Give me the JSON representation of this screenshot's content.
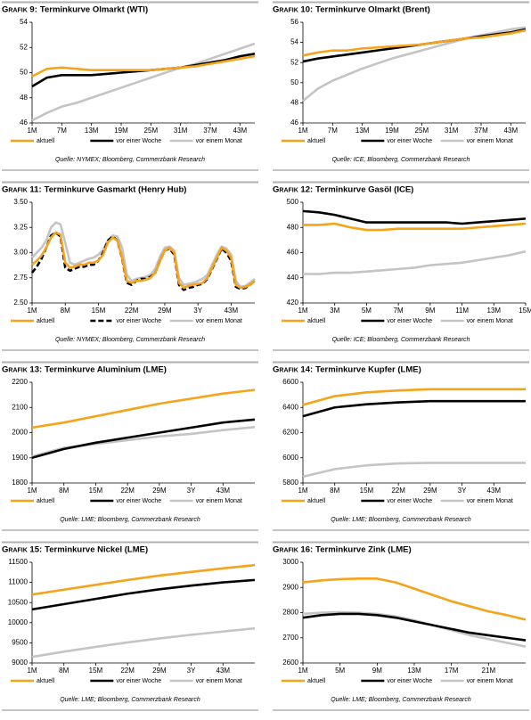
{
  "chart_data": [
    {
      "type": "line",
      "label": "Grafik 9:",
      "title": "Terminkurve Olmarkt (WTI)",
      "source": "Quelle: NYMEX; Bloomberg, Commerzbank Research",
      "categories": [
        "1M",
        null,
        "7M",
        null,
        "13M",
        null,
        "19M",
        null,
        "25M",
        null,
        "31M",
        null,
        "37M",
        null,
        "43M",
        null
      ],
      "ylim": [
        46,
        54
      ],
      "yticks": [
        46,
        48,
        50,
        52,
        54
      ],
      "series": [
        {
          "name": "aktuell",
          "color": "#f5a31a",
          "values": [
            49.7,
            50.3,
            50.4,
            50.3,
            50.2,
            50.2,
            50.2,
            50.2,
            50.2,
            50.3,
            50.4,
            50.5,
            50.7,
            50.9,
            51.1,
            51.3
          ]
        },
        {
          "name": "vor einer Woche",
          "color": "#000000",
          "values": [
            48.9,
            49.6,
            49.8,
            49.8,
            49.8,
            49.9,
            50.0,
            50.1,
            50.2,
            50.3,
            50.4,
            50.6,
            50.8,
            51.0,
            51.3,
            51.5
          ]
        },
        {
          "name": "vor einem Monat",
          "color": "#c4c4c4",
          "values": [
            46.2,
            46.8,
            47.3,
            47.6,
            48.0,
            48.4,
            48.8,
            49.2,
            49.6,
            50.0,
            50.4,
            50.7,
            51.1,
            51.5,
            51.9,
            52.3
          ]
        }
      ]
    },
    {
      "type": "line",
      "label": "Grafik 10:",
      "title": "Terminkurve Olmarkt (Brent)",
      "source": "Quelle: ICE, Bloomberg, Commerzbank Research",
      "categories": [
        "1M",
        null,
        "7M",
        null,
        "13M",
        null,
        "19M",
        null,
        "25M",
        null,
        "31M",
        null,
        "37M",
        null,
        "43M",
        null
      ],
      "ylim": [
        46,
        56
      ],
      "yticks": [
        46,
        48,
        50,
        52,
        54,
        56
      ],
      "series": [
        {
          "name": "aktuell",
          "color": "#f5a31a",
          "values": [
            52.7,
            53.0,
            53.2,
            53.2,
            53.4,
            53.5,
            53.6,
            53.7,
            53.8,
            54.0,
            54.2,
            54.4,
            54.5,
            54.7,
            54.9,
            55.2
          ]
        },
        {
          "name": "vor einer Woche",
          "color": "#000000",
          "values": [
            52.1,
            52.4,
            52.6,
            52.8,
            53.0,
            53.2,
            53.4,
            53.6,
            53.8,
            54.0,
            54.2,
            54.4,
            54.6,
            54.8,
            55.0,
            55.3
          ]
        },
        {
          "name": "vor einem Monat",
          "color": "#c4c4c4",
          "values": [
            48.2,
            49.4,
            50.2,
            50.8,
            51.4,
            51.9,
            52.4,
            52.8,
            53.2,
            53.6,
            54.0,
            54.4,
            54.7,
            55.0,
            55.3,
            55.5
          ]
        }
      ]
    },
    {
      "type": "line",
      "label": "Grafik 11:",
      "title": "Terminkurve Gasmarkt (Henry Hub)",
      "source": "Quelle: NYMEX; Bloomberg, Commerzbank Research",
      "categories": [
        "1M",
        null,
        null,
        null,
        null,
        null,
        null,
        "8M",
        null,
        null,
        null,
        null,
        null,
        null,
        "15M",
        null,
        null,
        null,
        null,
        null,
        null,
        "22M",
        null,
        null,
        null,
        null,
        null,
        null,
        "29M",
        null,
        null,
        null,
        null,
        null,
        null,
        "3Y",
        null,
        null,
        null,
        null,
        null,
        null,
        "43M",
        null,
        null,
        null,
        null,
        null
      ],
      "ylim": [
        2.5,
        3.5
      ],
      "yticks": [
        {
          "value": 2.5,
          "label": "2.50"
        },
        {
          "value": 2.75,
          "label": "2.75"
        },
        {
          "value": 3,
          "label": "3.00"
        },
        {
          "value": 3.25,
          "label": "3.25"
        },
        {
          "value": 3.5,
          "label": "3.50"
        }
      ],
      "series": [
        {
          "name": "aktuell",
          "color": "#f5a31a",
          "values": [
            2.88,
            2.92,
            2.97,
            3.05,
            3.15,
            3.2,
            3.18,
            2.9,
            2.85,
            2.86,
            2.88,
            2.88,
            2.9,
            2.9,
            2.92,
            2.98,
            3.1,
            3.15,
            3.12,
            2.95,
            2.72,
            2.7,
            2.72,
            2.72,
            2.73,
            2.75,
            2.8,
            2.92,
            3.02,
            3.05,
            3.0,
            2.7,
            2.65,
            2.67,
            2.68,
            2.69,
            2.7,
            2.75,
            2.85,
            2.95,
            3.05,
            3.02,
            2.95,
            2.68,
            2.65,
            2.66,
            2.68,
            2.72
          ]
        },
        {
          "name": "vor einer Woche",
          "color": "#000000",
          "dashed": true,
          "values": [
            2.8,
            2.86,
            2.94,
            3.05,
            3.17,
            3.2,
            3.16,
            2.85,
            2.82,
            2.84,
            2.86,
            2.86,
            2.88,
            2.88,
            2.92,
            3.0,
            3.12,
            3.16,
            3.12,
            2.94,
            2.7,
            2.68,
            2.72,
            2.74,
            2.74,
            2.76,
            2.8,
            2.92,
            3.02,
            3.04,
            2.98,
            2.68,
            2.63,
            2.65,
            2.66,
            2.68,
            2.69,
            2.74,
            2.84,
            2.94,
            3.04,
            3.0,
            2.92,
            2.66,
            2.64,
            2.65,
            2.68,
            2.72
          ]
        },
        {
          "name": "vor einem Monat",
          "color": "#c4c4c4",
          "values": [
            2.95,
            3.0,
            3.05,
            3.12,
            3.25,
            3.3,
            3.28,
            3.1,
            2.9,
            2.88,
            2.9,
            2.92,
            2.94,
            2.95,
            2.98,
            3.03,
            3.12,
            3.17,
            3.16,
            3.05,
            2.78,
            2.72,
            2.74,
            2.75,
            2.76,
            2.78,
            2.84,
            2.96,
            3.05,
            3.06,
            3.02,
            2.75,
            2.68,
            2.69,
            2.7,
            2.72,
            2.74,
            2.78,
            2.88,
            2.98,
            3.06,
            3.04,
            2.98,
            2.72,
            2.66,
            2.67,
            2.7,
            2.74
          ]
        }
      ]
    },
    {
      "type": "line",
      "label": "Grafik 12:",
      "title": "Terminkurve Gasöl (ICE)",
      "source": "Quelle: ICE; Bloomberg, Commerzbank Research",
      "categories": [
        "1M",
        null,
        "3M",
        null,
        "5M",
        null,
        "7M",
        null,
        "9M",
        null,
        "11M",
        null,
        "13M",
        null,
        "15M"
      ],
      "ylim": [
        420,
        500
      ],
      "yticks": [
        420,
        440,
        460,
        480,
        500
      ],
      "series": [
        {
          "name": "aktuell",
          "color": "#f5a31a",
          "values": [
            482,
            482,
            483,
            480,
            478,
            478,
            479,
            479,
            479,
            479,
            479,
            480,
            481,
            482,
            483
          ]
        },
        {
          "name": "vor einer Woche",
          "color": "#000000",
          "values": [
            493,
            492,
            490,
            487,
            484,
            484,
            484,
            484,
            484,
            484,
            483,
            484,
            485,
            486,
            487
          ]
        },
        {
          "name": "vor einem Monat",
          "color": "#c4c4c4",
          "values": [
            443,
            443,
            444,
            444,
            445,
            446,
            447,
            448,
            450,
            451,
            452,
            454,
            456,
            458,
            461
          ]
        }
      ]
    },
    {
      "type": "line",
      "label": "Grafik 13:",
      "title": "Terminkurve Aluminium (LME)",
      "source": "Quelle: LME; Bloomberg, Commerzbank Research",
      "categories": [
        "1M",
        "8M",
        "15M",
        "22M",
        "29M",
        "3Y",
        "43M",
        null
      ],
      "ylim": [
        1800,
        2200
      ],
      "yticks": [
        1800,
        1900,
        2000,
        2100,
        2200
      ],
      "series": [
        {
          "name": "aktuell",
          "color": "#f5a31a",
          "values": [
            2020,
            2040,
            2065,
            2090,
            2115,
            2135,
            2155,
            2170
          ]
        },
        {
          "name": "vor einer Woche",
          "color": "#000000",
          "values": [
            1900,
            1935,
            1960,
            1980,
            2000,
            2020,
            2040,
            2052
          ]
        },
        {
          "name": "vor einem Monat",
          "color": "#c4c4c4",
          "values": [
            1905,
            1940,
            1955,
            1970,
            1985,
            1995,
            2010,
            2022
          ]
        }
      ]
    },
    {
      "type": "line",
      "label": "Grafik 14:",
      "title": "Terminkurve Kupfer (LME)",
      "source": "Quelle: LME; Bloomberg, Commerzbank Research",
      "categories": [
        "1M",
        "8M",
        "15M",
        "22M",
        "29M",
        "3Y",
        "43M",
        null
      ],
      "ylim": [
        5800,
        6600
      ],
      "yticks": [
        5800,
        6000,
        6200,
        6400,
        6600
      ],
      "series": [
        {
          "name": "aktuell",
          "color": "#f5a31a",
          "values": [
            6420,
            6490,
            6520,
            6535,
            6545,
            6545,
            6545,
            6545
          ]
        },
        {
          "name": "vor einer Woche",
          "color": "#000000",
          "values": [
            6330,
            6400,
            6425,
            6440,
            6450,
            6450,
            6450,
            6450
          ]
        },
        {
          "name": "vor einem Monat",
          "color": "#c4c4c4",
          "values": [
            5850,
            5910,
            5940,
            5955,
            5960,
            5960,
            5960,
            5960
          ]
        }
      ]
    },
    {
      "type": "line",
      "label": "Grafik 15:",
      "title": "Terminkurve Nickel (LME)",
      "source": "Quelle: LME; Bloomberg, Commerzbank Research",
      "categories": [
        "1M",
        "8M",
        "15M",
        "22M",
        "29M",
        "3Y",
        "43M",
        null
      ],
      "ylim": [
        9000,
        11500
      ],
      "yticks": [
        9000,
        9500,
        10000,
        10500,
        11000,
        11500
      ],
      "series": [
        {
          "name": "aktuell",
          "color": "#f5a31a",
          "values": [
            10700,
            10820,
            10940,
            11060,
            11170,
            11260,
            11350,
            11430
          ]
        },
        {
          "name": "vor einer Woche",
          "color": "#000000",
          "values": [
            10330,
            10460,
            10590,
            10720,
            10830,
            10920,
            11000,
            11060
          ]
        },
        {
          "name": "vor einem Monat",
          "color": "#c4c4c4",
          "values": [
            9150,
            9280,
            9400,
            9510,
            9610,
            9700,
            9780,
            9860
          ]
        }
      ]
    },
    {
      "type": "line",
      "label": "Grafik 16:",
      "title": "Terminkurve Zink (LME)",
      "source": "Quelle: LME; Bloomberg, Commerzbank Research",
      "categories": [
        "1M",
        null,
        "5M",
        null,
        "9M",
        null,
        "13M",
        null,
        "17M",
        null,
        "21M",
        null,
        null
      ],
      "ylim": [
        2600,
        3000
      ],
      "yticks": [
        2600,
        2700,
        2800,
        2900,
        3000
      ],
      "series": [
        {
          "name": "aktuell",
          "color": "#f5a31a",
          "values": [
            2920,
            2928,
            2933,
            2935,
            2935,
            2920,
            2895,
            2870,
            2845,
            2825,
            2805,
            2790,
            2772
          ]
        },
        {
          "name": "vor einer Woche",
          "color": "#000000",
          "values": [
            2780,
            2790,
            2795,
            2795,
            2790,
            2780,
            2765,
            2750,
            2735,
            2720,
            2710,
            2700,
            2690
          ]
        },
        {
          "name": "vor einem Monat",
          "color": "#c4c4c4",
          "values": [
            2795,
            2800,
            2802,
            2800,
            2795,
            2785,
            2770,
            2750,
            2730,
            2710,
            2695,
            2680,
            2665
          ]
        }
      ]
    }
  ]
}
